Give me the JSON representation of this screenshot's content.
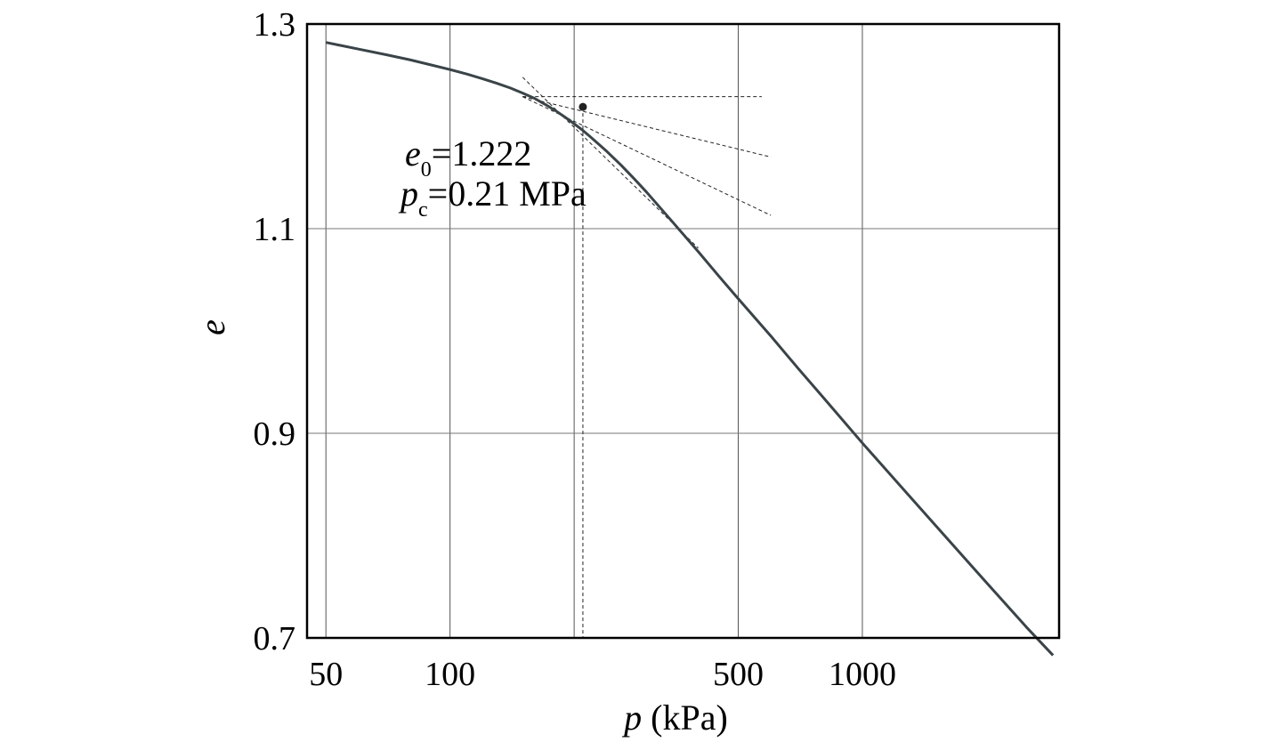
{
  "chart_data": {
    "type": "line",
    "title": "",
    "xlabel_var": "p",
    "xlabel_unit": " (kPa)",
    "ylabel": "e",
    "x_scale": "log",
    "xlim": [
      45,
      3000
    ],
    "ylim": [
      0.7,
      1.3
    ],
    "x_ticks": [
      50,
      100,
      500,
      1000
    ],
    "x_tick_labels": [
      "50",
      "100",
      "500",
      "1000"
    ],
    "y_ticks": [
      0.7,
      0.9,
      1.1,
      1.3
    ],
    "y_tick_labels": [
      "0.7",
      "0.9",
      "1.1",
      "1.3"
    ],
    "x_grid": [
      50,
      100,
      200,
      500,
      1000
    ],
    "y_grid": [
      0.9,
      1.1
    ],
    "series": [
      {
        "color": "#3a4448",
        "x": [
          50,
          60,
          70,
          80,
          90,
          100,
          110,
          120,
          130,
          140,
          150,
          160,
          170,
          180,
          190,
          200,
          210,
          220,
          240,
          260,
          280,
          300,
          350,
          400,
          450,
          500,
          600,
          700,
          800,
          1000,
          1500,
          2000,
          2500,
          2900
        ],
        "y": [
          1.282,
          1.2755,
          1.27,
          1.265,
          1.26,
          1.2555,
          1.251,
          1.2465,
          1.242,
          1.2375,
          1.2325,
          1.2275,
          1.2215,
          1.2155,
          1.209,
          1.2025,
          1.196,
          1.189,
          1.1755,
          1.162,
          1.1485,
          1.1355,
          1.1045,
          1.0775,
          1.053,
          1.0315,
          0.995,
          0.963,
          0.936,
          0.8905,
          0.8105,
          0.754,
          0.7105,
          0.683
        ]
      }
    ],
    "construction_lines": [
      {
        "x": [
          150,
          570
        ],
        "y": [
          1.229,
          1.229
        ]
      },
      {
        "x": [
          150,
          600
        ],
        "y": [
          1.229,
          1.17
        ]
      },
      {
        "x": [
          150,
          600
        ],
        "y": [
          1.229,
          1.113
        ]
      },
      {
        "x": [
          150,
          400
        ],
        "y": [
          1.248,
          1.081
        ]
      },
      {
        "x": [
          210,
          210
        ],
        "y": [
          1.219,
          0.7
        ]
      }
    ],
    "marker": {
      "x": 210,
      "y": 1.219
    },
    "annotations": {
      "e0_var": "e",
      "e0_sub": "0",
      "e0_value": "=1.222",
      "pc_var": "p",
      "pc_sub": "c",
      "pc_value": "=0.21 MPa"
    }
  }
}
